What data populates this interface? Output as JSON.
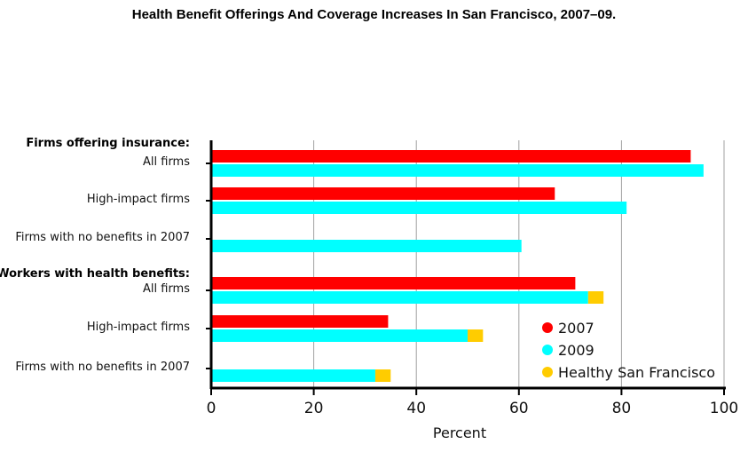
{
  "chart_data": {
    "type": "bar",
    "orientation": "horizontal",
    "stacked_segments": true,
    "title": "Health Benefit Offerings And Coverage Increases In San Francisco, 2007–09.",
    "xlabel": "Percent",
    "xlim": [
      0,
      100
    ],
    "xticks": [
      0,
      20,
      40,
      60,
      80,
      100
    ],
    "grid": "vertical",
    "legend_position": "bottom-right",
    "groups": [
      {
        "label": "Firms offering insurance:",
        "categories": [
          {
            "label": "All firms",
            "bars": [
              [
                {
                  "series": "2007",
                  "value": 93.5
                }
              ],
              [
                {
                  "series": "2009",
                  "value": 96
                }
              ]
            ]
          },
          {
            "label": "High-impact firms",
            "bars": [
              [
                {
                  "series": "2007",
                  "value": 67
                }
              ],
              [
                {
                  "series": "2009",
                  "value": 81
                }
              ]
            ]
          },
          {
            "label": "Firms with no benefits in 2007",
            "bars": [
              [
                {
                  "series": "2007",
                  "value": 0
                }
              ],
              [
                {
                  "series": "2009",
                  "value": 60.5
                }
              ]
            ]
          }
        ]
      },
      {
        "label": "Workers with health benefits:",
        "categories": [
          {
            "label": "All firms",
            "bars": [
              [
                {
                  "series": "2007",
                  "value": 71
                }
              ],
              [
                {
                  "series": "2009",
                  "value": 73.5
                },
                {
                  "series": "Healthy San Francisco",
                  "value": 3
                }
              ]
            ]
          },
          {
            "label": "High-impact firms",
            "bars": [
              [
                {
                  "series": "2007",
                  "value": 34.5
                }
              ],
              [
                {
                  "series": "2009",
                  "value": 50
                },
                {
                  "series": "Healthy San Francisco",
                  "value": 3
                }
              ]
            ]
          },
          {
            "label": "Firms with no benefits in 2007",
            "bars": [
              [
                {
                  "series": "2007",
                  "value": 0
                }
              ],
              [
                {
                  "series": "2009",
                  "value": 32
                },
                {
                  "series": "Healthy San Francisco",
                  "value": 3
                }
              ]
            ]
          }
        ]
      }
    ],
    "series": [
      {
        "name": "2007",
        "color": "#ff0000"
      },
      {
        "name": "2009",
        "color": "#00ffff"
      },
      {
        "name": "Healthy San Francisco",
        "color": "#ffcc00"
      }
    ]
  }
}
